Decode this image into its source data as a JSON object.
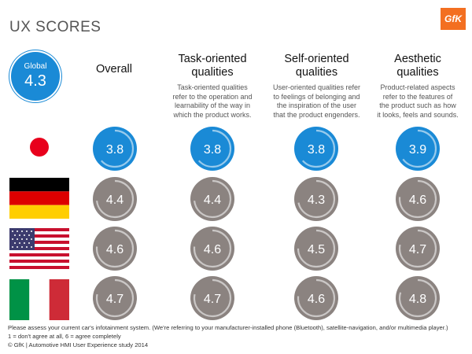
{
  "title": "UX SCORES",
  "logo": "GfK",
  "global": {
    "label": "Global",
    "value": "4.3"
  },
  "colors": {
    "japan": "#1a8ad6",
    "other": "#8b8380",
    "ring": "#ffffff"
  },
  "columns": [
    {
      "heading": [
        "Overall"
      ],
      "desc": []
    },
    {
      "heading": [
        "Task-oriented",
        "qualities"
      ],
      "desc": [
        "Task-oriented qualities",
        "refer to the operation and",
        "learnability of the way in",
        "which the product works."
      ]
    },
    {
      "heading": [
        "Self-oriented",
        "qualities"
      ],
      "desc": [
        "User-oriented qualities refer",
        "to feelings of belonging and",
        "the inspiration of the user",
        "that the product engenders."
      ]
    },
    {
      "heading": [
        "Aesthetic",
        "qualities"
      ],
      "desc": [
        "Product-related aspects",
        "refer to the features of",
        "the product such as how",
        "it looks, feels and sounds."
      ]
    }
  ],
  "chart_data": {
    "type": "table",
    "scale": "1 = don't agree at all, 6 = agree completely",
    "columns": [
      "Overall",
      "Task-oriented qualities",
      "Self-oriented qualities",
      "Aesthetic qualities"
    ],
    "rows": [
      {
        "country": "Japan",
        "flag": "japan-flag",
        "values": [
          3.8,
          3.8,
          3.8,
          3.9
        ]
      },
      {
        "country": "Germany",
        "flag": "germany-flag",
        "values": [
          4.4,
          4.4,
          4.3,
          4.6
        ]
      },
      {
        "country": "USA",
        "flag": "usa-flag",
        "values": [
          4.6,
          4.6,
          4.5,
          4.7
        ]
      },
      {
        "country": "Italy",
        "flag": "italy-flag",
        "values": [
          4.7,
          4.7,
          4.6,
          4.8
        ]
      }
    ],
    "global": 4.3
  },
  "footnote": [
    "Please assess your current car's infotainment system. (We're referring to your manufacturer-installed phone (Bluetooth), satellite-navigation, and/or multimedia player.)",
    "1 = don't agree at all, 6 = agree completely",
    "© GfK | Automotive HMI User Experience study 2014"
  ]
}
